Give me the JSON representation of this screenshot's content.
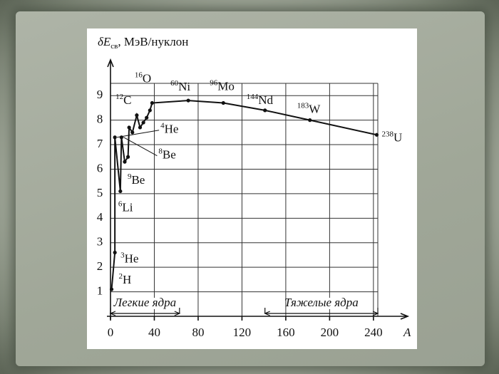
{
  "chart_data": {
    "type": "line",
    "y_label": {
      "symbol": "δE",
      "subscript": "св",
      "unit": ", МэВ/нуклон"
    },
    "x_label": "A",
    "x": [
      1,
      4,
      4,
      9,
      10,
      13,
      16,
      17,
      20,
      24,
      27,
      30,
      33,
      36,
      38,
      71,
      103,
      141,
      182,
      243
    ],
    "values": [
      1.1,
      2.6,
      7.3,
      5.1,
      7.3,
      6.3,
      6.5,
      7.7,
      7.5,
      8.2,
      7.7,
      7.9,
      8.1,
      8.4,
      8.7,
      8.8,
      8.7,
      8.4,
      8.0,
      7.4
    ],
    "point_labels": [
      {
        "mass": "2",
        "symbol": "H"
      },
      {
        "mass": "3",
        "symbol": "He"
      },
      {
        "mass": "4",
        "symbol": "He"
      },
      {
        "mass": "6",
        "symbol": "Li"
      },
      {
        "mass": "8",
        "symbol": "Be"
      },
      {
        "mass": "9",
        "symbol": "Be"
      },
      null,
      {
        "mass": "12",
        "symbol": "C"
      },
      null,
      {
        "mass": "16",
        "symbol": "O"
      },
      null,
      null,
      null,
      null,
      null,
      {
        "mass": "60",
        "symbol": "Ni"
      },
      {
        "mass": "96",
        "symbol": "Mo"
      },
      {
        "mass": "144",
        "symbol": "Nd"
      },
      {
        "mass": "183",
        "symbol": "W"
      },
      {
        "mass": "238",
        "symbol": "U"
      }
    ],
    "color": "#111111",
    "xlim": [
      0,
      244
    ],
    "ylim": [
      0,
      9.5
    ],
    "xticks": [
      0,
      40,
      80,
      120,
      160,
      200,
      240
    ],
    "yticks": [
      1,
      2,
      3,
      4,
      5,
      6,
      7,
      8,
      9
    ],
    "grid": true,
    "ranges": [
      {
        "label": "Легкие ядра",
        "range": [
          0,
          63
        ]
      },
      {
        "label": "Тяжелые ядра",
        "range": [
          141,
          244
        ]
      }
    ]
  }
}
